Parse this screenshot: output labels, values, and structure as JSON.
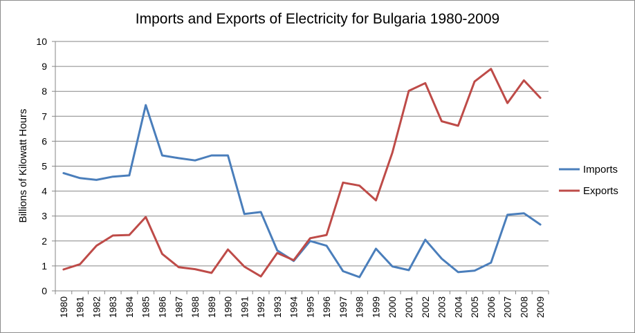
{
  "chart_data": {
    "type": "line",
    "title": "Imports and Exports of Electricity for Bulgaria 1980-2009",
    "xlabel": "",
    "ylabel": "Billions of Kilowatt Hours",
    "ylim": [
      0,
      10
    ],
    "yticks": [
      "0",
      "1",
      "2",
      "3",
      "4",
      "5",
      "6",
      "7",
      "8",
      "9",
      "10"
    ],
    "grid": true,
    "legend_position": "right",
    "categories": [
      "1980",
      "1981",
      "1982",
      "1983",
      "1984",
      "1985",
      "1986",
      "1987",
      "1988",
      "1989",
      "1990",
      "1991",
      "1992",
      "1993",
      "1994",
      "1995",
      "1996",
      "1997",
      "1998",
      "1999",
      "2000",
      "2001",
      "2002",
      "2003",
      "2004",
      "2005",
      "2006",
      "2007",
      "2008",
      "2009"
    ],
    "series": [
      {
        "name": "Imports",
        "color": "#4a7ebb",
        "values": [
          4.72,
          4.52,
          4.45,
          4.58,
          4.63,
          7.45,
          5.43,
          5.32,
          5.23,
          5.43,
          5.43,
          3.08,
          3.16,
          1.62,
          1.2,
          2.0,
          1.81,
          0.79,
          0.55,
          1.69,
          0.98,
          0.83,
          2.05,
          1.29,
          0.75,
          0.81,
          1.13,
          3.05,
          3.11,
          2.66
        ]
      },
      {
        "name": "Exports",
        "color": "#be4b48",
        "values": [
          0.86,
          1.07,
          1.81,
          2.22,
          2.24,
          2.96,
          1.48,
          0.95,
          0.87,
          0.72,
          1.66,
          0.97,
          0.58,
          1.52,
          1.23,
          2.11,
          2.24,
          4.34,
          4.22,
          3.63,
          5.54,
          8.02,
          8.33,
          6.8,
          6.62,
          8.39,
          8.9,
          7.53,
          8.44,
          7.74
        ]
      }
    ]
  }
}
